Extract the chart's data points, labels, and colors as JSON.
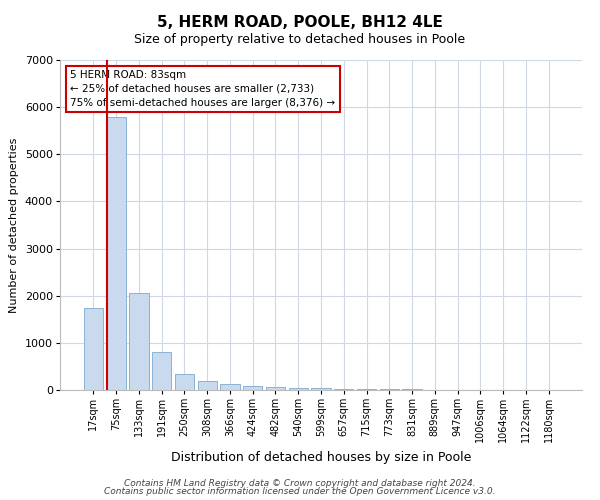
{
  "title": "5, HERM ROAD, POOLE, BH12 4LE",
  "subtitle": "Size of property relative to detached houses in Poole",
  "xlabel": "Distribution of detached houses by size in Poole",
  "ylabel": "Number of detached properties",
  "categories": [
    "17sqm",
    "75sqm",
    "133sqm",
    "191sqm",
    "250sqm",
    "308sqm",
    "366sqm",
    "424sqm",
    "482sqm",
    "540sqm",
    "599sqm",
    "657sqm",
    "715sqm",
    "773sqm",
    "831sqm",
    "889sqm",
    "947sqm",
    "1006sqm",
    "1064sqm",
    "1122sqm",
    "1180sqm"
  ],
  "values": [
    1750,
    5800,
    2050,
    810,
    340,
    200,
    120,
    85,
    65,
    50,
    40,
    30,
    25,
    18,
    12,
    8,
    6,
    4,
    3,
    2,
    2
  ],
  "bar_color": "#c9d9ee",
  "bar_edge_color": "#7aaad0",
  "vline_color": "#cc0000",
  "annotation_text": "5 HERM ROAD: 83sqm\n← 25% of detached houses are smaller (2,733)\n75% of semi-detached houses are larger (8,376) →",
  "annotation_box_facecolor": "#ffffff",
  "annotation_box_edgecolor": "#cc0000",
  "ylim": [
    0,
    7000
  ],
  "yticks": [
    0,
    1000,
    2000,
    3000,
    4000,
    5000,
    6000,
    7000
  ],
  "footnote1": "Contains HM Land Registry data © Crown copyright and database right 2024.",
  "footnote2": "Contains public sector information licensed under the Open Government Licence v3.0.",
  "bg_color": "#ffffff",
  "plot_bg_color": "#ffffff",
  "grid_color": "#d0d8e8",
  "title_fontsize": 11,
  "subtitle_fontsize": 9,
  "xlabel_fontsize": 9,
  "ylabel_fontsize": 8,
  "tick_fontsize": 7,
  "annotation_fontsize": 7.5,
  "footnote_fontsize": 6.5
}
